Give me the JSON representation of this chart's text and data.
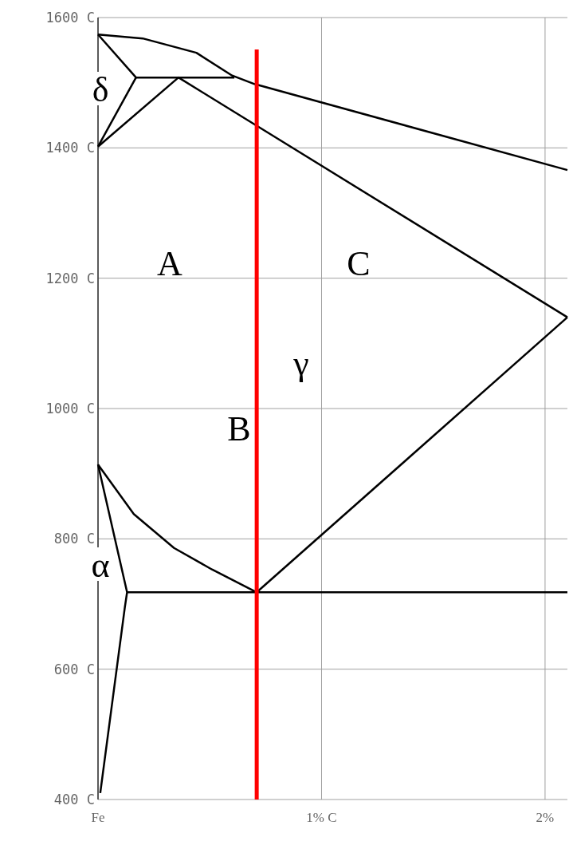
{
  "chart_data": {
    "type": "line",
    "xlim": [
      0,
      2.1
    ],
    "ylim": [
      400,
      1600
    ],
    "xticks": [
      {
        "value": 0,
        "label": "Fe"
      },
      {
        "value": 1,
        "label": "1% C"
      },
      {
        "value": 2,
        "label": "2%"
      }
    ],
    "yticks": [
      {
        "value": 1600,
        "label": "1600 C"
      },
      {
        "value": 1400,
        "label": "1400 C"
      },
      {
        "value": 1200,
        "label": "1200 C"
      },
      {
        "value": 1000,
        "label": "1000 C"
      },
      {
        "value": 800,
        "label": "800 C"
      },
      {
        "value": 600,
        "label": "600 C"
      },
      {
        "value": 400,
        "label": "400 C"
      }
    ],
    "grid": true,
    "line_style": "solid",
    "marker": "none",
    "series": [
      {
        "color": "#000000",
        "x": [
          0,
          0.2,
          0.44,
          0.6,
          0.7,
          2.1
        ],
        "values": [
          1574,
          1568,
          1546,
          1511,
          1498,
          1366
        ]
      },
      {
        "color": "#000000",
        "x": [
          0,
          0.17,
          0
        ],
        "values": [
          1574,
          1508,
          1402
        ]
      },
      {
        "color": "#000000",
        "x": [
          0.17,
          0.61
        ],
        "values": [
          1508,
          1508
        ]
      },
      {
        "color": "#000000",
        "x": [
          0,
          0.36,
          2.1
        ],
        "values": [
          1402,
          1508,
          1140
        ]
      },
      {
        "color": "#000000",
        "x": [
          0,
          0.16,
          0.34,
          0.51,
          0.71
        ],
        "values": [
          914,
          838,
          786,
          753,
          718
        ]
      },
      {
        "color": "#000000",
        "x": [
          0.71,
          2.1
        ],
        "values": [
          718,
          1140
        ]
      },
      {
        "color": "#000000",
        "x": [
          0.13,
          2.1
        ],
        "values": [
          718,
          718
        ]
      },
      {
        "color": "#000000",
        "x": [
          0,
          0.13,
          0.12,
          0.01
        ],
        "values": [
          914,
          718,
          695,
          410
        ]
      },
      {
        "color": "#ff0000",
        "x": [
          0.71,
          0.71
        ],
        "values": [
          1551,
          400
        ]
      }
    ],
    "annotations": [
      "δ",
      "α",
      "A",
      "B",
      "C",
      "γ"
    ]
  }
}
